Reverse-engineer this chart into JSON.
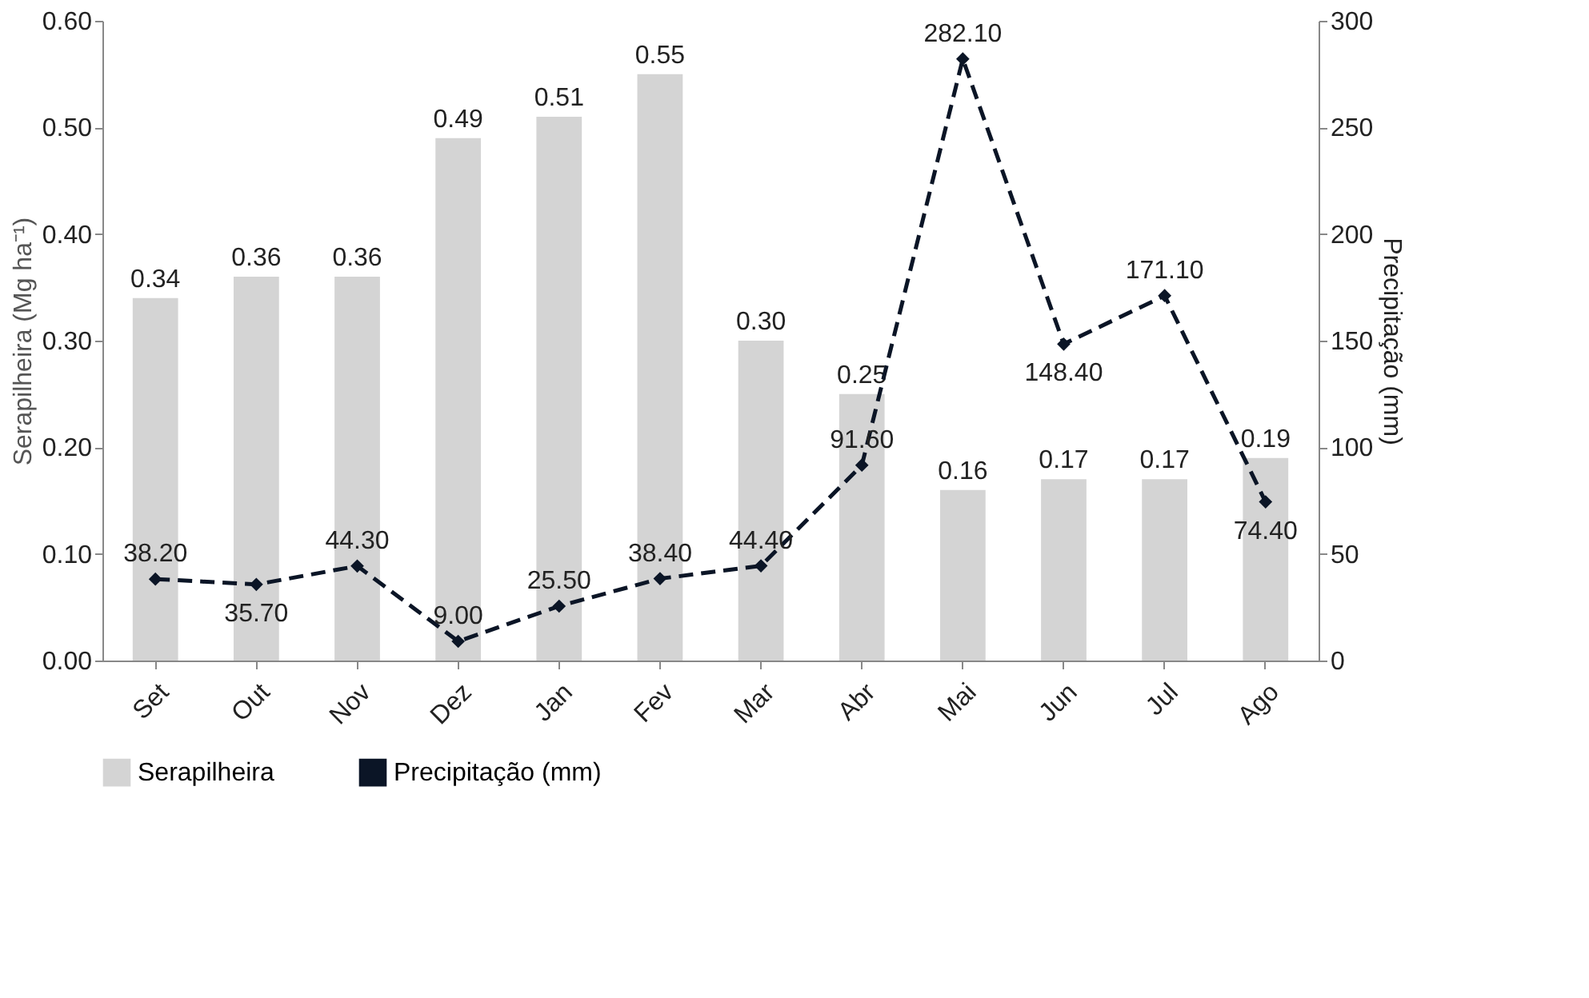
{
  "chart_data": {
    "type": "bar",
    "categories": [
      "Set",
      "Out",
      "Nov",
      "Dez",
      "Jan",
      "Fev",
      "Mar",
      "Abr",
      "Mai",
      "Jun",
      "Jul",
      "Ago"
    ],
    "ylabel": "Serapilheira (Mg ha⁻¹)",
    "y2label": "Precipitação (mm)",
    "series": [
      {
        "name": "Serapilheira",
        "color": "#d4d4d4",
        "values": [
          0.34,
          0.36,
          0.36,
          0.49,
          0.51,
          0.55,
          0.3,
          0.25,
          0.16,
          0.17,
          0.17,
          0.19
        ],
        "value_labels": [
          "0.34",
          "0.36",
          "0.36",
          "0.49",
          "0.51",
          "0.55",
          "0.30",
          "0.25",
          "0.16",
          "0.17",
          "0.17",
          "0.19"
        ]
      },
      {
        "name": "Precipitação (mm)",
        "type": "line",
        "axis": "y2",
        "color": "#0b1526",
        "marker": "diamond",
        "line_style": "dashed",
        "values": [
          38.2,
          35.7,
          44.3,
          9.0,
          25.5,
          38.4,
          44.4,
          91.6,
          282.1,
          148.4,
          171.1,
          74.4
        ],
        "value_labels": [
          "38.20",
          "35.70",
          "44.30",
          "9.00",
          "25.50",
          "38.40",
          "44.40",
          "91.60",
          "282.10",
          "148.40",
          "171.10",
          "74.40"
        ]
      }
    ],
    "ylim": [
      0,
      0.6
    ],
    "yticks": [
      {
        "value": 0,
        "label": "0.00"
      },
      {
        "value": 0.1,
        "label": "0.10"
      },
      {
        "value": 0.2,
        "label": "0.20"
      },
      {
        "value": 0.3,
        "label": "0.30"
      },
      {
        "value": 0.4,
        "label": "0.40"
      },
      {
        "value": 0.5,
        "label": "0.50"
      },
      {
        "value": 0.6,
        "label": "0.60"
      }
    ],
    "y2lim": [
      0,
      300
    ],
    "y2ticks": [
      0,
      50,
      100,
      150,
      200,
      250,
      300
    ],
    "grid": false,
    "legend": "bottom"
  }
}
